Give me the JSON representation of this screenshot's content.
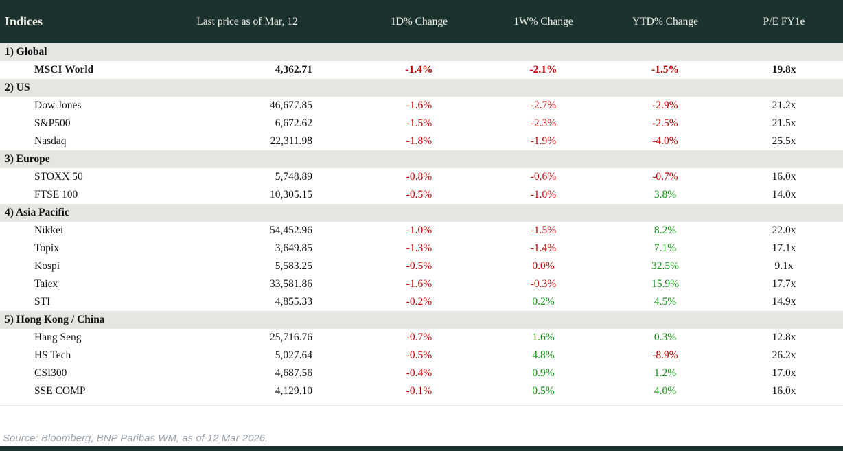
{
  "colors": {
    "header_bg": "#1b322e",
    "section_bg": "#e3e6e1",
    "negative": "#c00000",
    "positive": "#0e930e",
    "source_text": "#9aa3ab"
  },
  "table": {
    "columns": [
      "Indices",
      "Last price as of Mar, 12",
      "1D% Change",
      "1W% Change",
      "YTD% Change",
      "P/E FY1e"
    ],
    "sections": [
      {
        "label": "1) Global",
        "rows": [
          {
            "name": "MSCI World",
            "bold": true,
            "price": "4,362.71",
            "changes": [
              {
                "v": "-1.4%",
                "c": "neg"
              },
              {
                "v": "-2.1%",
                "c": "neg"
              },
              {
                "v": "-1.5%",
                "c": "neg"
              }
            ],
            "pe": "19.8x"
          }
        ]
      },
      {
        "label": "2) US",
        "rows": [
          {
            "name": "Dow Jones",
            "bold": false,
            "price": "46,677.85",
            "changes": [
              {
                "v": "-1.6%",
                "c": "neg"
              },
              {
                "v": "-2.7%",
                "c": "neg"
              },
              {
                "v": "-2.9%",
                "c": "neg"
              }
            ],
            "pe": "21.2x"
          },
          {
            "name": "S&P500",
            "bold": false,
            "price": "6,672.62",
            "changes": [
              {
                "v": "-1.5%",
                "c": "neg"
              },
              {
                "v": "-2.3%",
                "c": "neg"
              },
              {
                "v": "-2.5%",
                "c": "neg"
              }
            ],
            "pe": "21.5x"
          },
          {
            "name": "Nasdaq",
            "bold": false,
            "price": "22,311.98",
            "changes": [
              {
                "v": "-1.8%",
                "c": "neg"
              },
              {
                "v": "-1.9%",
                "c": "neg"
              },
              {
                "v": "-4.0%",
                "c": "neg"
              }
            ],
            "pe": "25.5x"
          }
        ]
      },
      {
        "label": "3) Europe",
        "rows": [
          {
            "name": "STOXX 50",
            "bold": false,
            "price": "5,748.89",
            "changes": [
              {
                "v": "-0.8%",
                "c": "neg"
              },
              {
                "v": "-0.6%",
                "c": "neg"
              },
              {
                "v": "-0.7%",
                "c": "neg"
              }
            ],
            "pe": "16.0x"
          },
          {
            "name": "FTSE 100",
            "bold": false,
            "price": "10,305.15",
            "changes": [
              {
                "v": "-0.5%",
                "c": "neg"
              },
              {
                "v": "-1.0%",
                "c": "neg"
              },
              {
                "v": "3.8%",
                "c": "pos"
              }
            ],
            "pe": "14.0x"
          }
        ]
      },
      {
        "label": "4) Asia Pacific",
        "rows": [
          {
            "name": "Nikkei",
            "bold": false,
            "price": "54,452.96",
            "changes": [
              {
                "v": "-1.0%",
                "c": "neg"
              },
              {
                "v": "-1.5%",
                "c": "neg"
              },
              {
                "v": "8.2%",
                "c": "pos"
              }
            ],
            "pe": "22.0x"
          },
          {
            "name": "Topix",
            "bold": false,
            "price": "3,649.85",
            "changes": [
              {
                "v": "-1.3%",
                "c": "neg"
              },
              {
                "v": "-1.4%",
                "c": "neg"
              },
              {
                "v": "7.1%",
                "c": "pos"
              }
            ],
            "pe": "17.1x"
          },
          {
            "name": "Kospi",
            "bold": false,
            "price": "5,583.25",
            "changes": [
              {
                "v": "-0.5%",
                "c": "neg"
              },
              {
                "v": "0.0%",
                "c": "neg"
              },
              {
                "v": "32.5%",
                "c": "pos"
              }
            ],
            "pe": "9.1x"
          },
          {
            "name": "Taiex",
            "bold": false,
            "price": "33,581.86",
            "changes": [
              {
                "v": "-1.6%",
                "c": "neg"
              },
              {
                "v": "-0.3%",
                "c": "neg"
              },
              {
                "v": "15.9%",
                "c": "pos"
              }
            ],
            "pe": "17.7x"
          },
          {
            "name": "STI",
            "bold": false,
            "price": "4,855.33",
            "changes": [
              {
                "v": "-0.2%",
                "c": "neg"
              },
              {
                "v": "0.2%",
                "c": "pos"
              },
              {
                "v": "4.5%",
                "c": "pos"
              }
            ],
            "pe": "14.9x"
          }
        ]
      },
      {
        "label": "5) Hong Kong / China",
        "rows": [
          {
            "name": "Hang Seng",
            "bold": false,
            "price": "25,716.76",
            "changes": [
              {
                "v": "-0.7%",
                "c": "neg"
              },
              {
                "v": "1.6%",
                "c": "pos"
              },
              {
                "v": "0.3%",
                "c": "pos"
              }
            ],
            "pe": "12.8x"
          },
          {
            "name": "HS Tech",
            "bold": false,
            "price": "5,027.64",
            "changes": [
              {
                "v": "-0.5%",
                "c": "neg"
              },
              {
                "v": "4.8%",
                "c": "pos"
              },
              {
                "v": "-8.9%",
                "c": "neg"
              }
            ],
            "pe": "26.2x"
          },
          {
            "name": "CSI300",
            "bold": false,
            "price": "4,687.56",
            "changes": [
              {
                "v": "-0.4%",
                "c": "neg"
              },
              {
                "v": "0.9%",
                "c": "pos"
              },
              {
                "v": "1.2%",
                "c": "pos"
              }
            ],
            "pe": "17.0x"
          },
          {
            "name": "SSE COMP",
            "bold": false,
            "price": "4,129.10",
            "changes": [
              {
                "v": "-0.1%",
                "c": "neg"
              },
              {
                "v": "0.5%",
                "c": "pos"
              },
              {
                "v": "4.0%",
                "c": "pos"
              }
            ],
            "pe": "16.0x"
          }
        ]
      }
    ]
  },
  "footer": {
    "source": "Source: Bloomberg, BNP Paribas WM, as of 12 Mar 2026."
  }
}
